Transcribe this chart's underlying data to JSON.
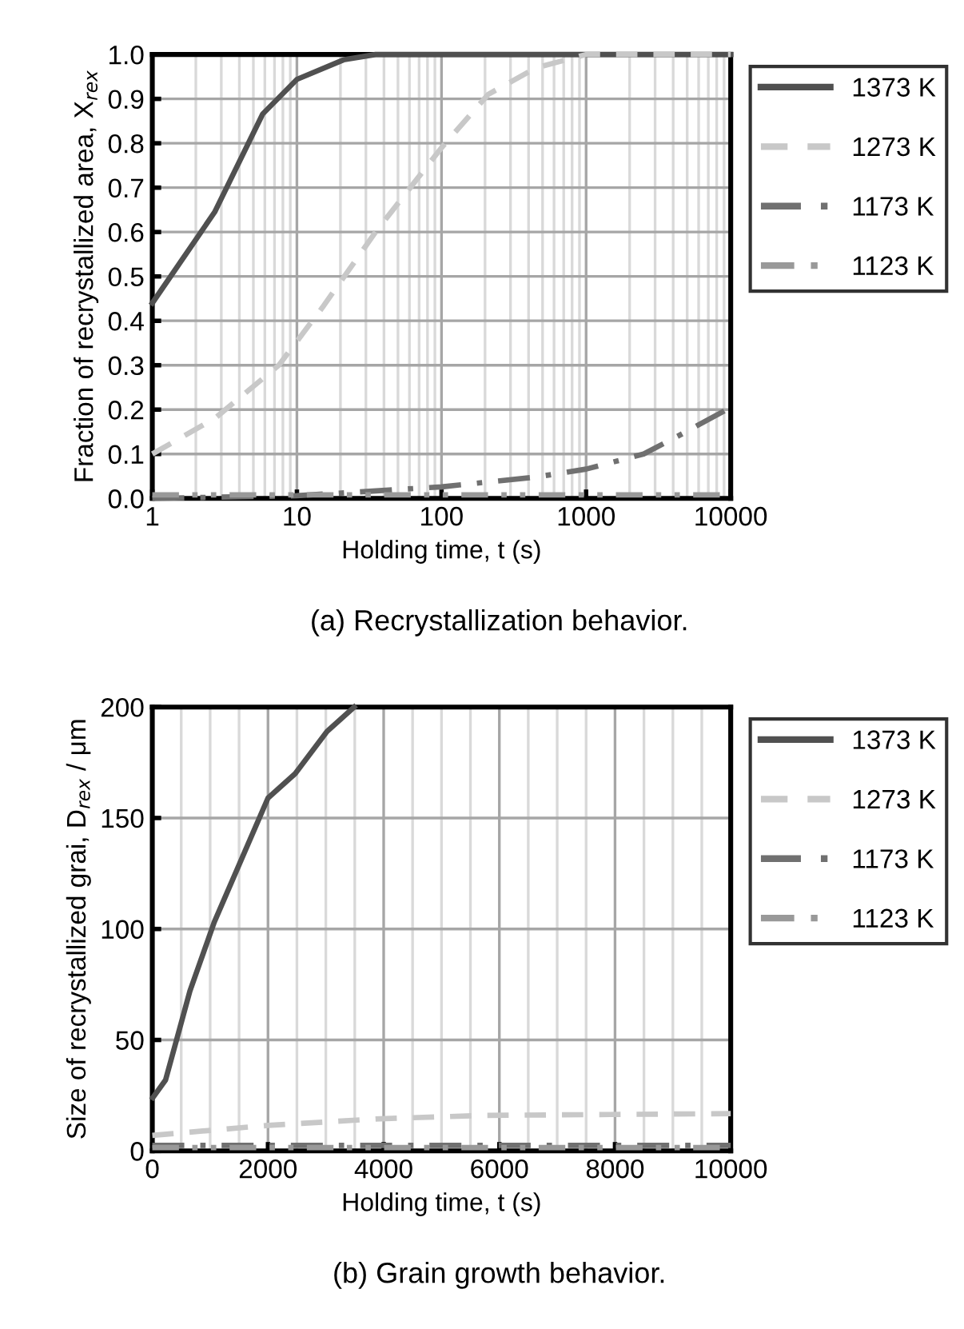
{
  "chart_data": [
    {
      "type": "line",
      "title": "(a) Recrystallization behavior.",
      "xlabel": "Holding time, t (s)",
      "ylabel": "Fraction of recrystallized area, X$_{rex}$",
      "log": "x",
      "xlim": [
        1,
        10000
      ],
      "xticks": [
        1,
        10,
        100,
        1000,
        10000
      ],
      "ylim": [
        0,
        1.0
      ],
      "yticks": [
        {
          "value": 0,
          "label": "0.0"
        },
        {
          "value": 0.1,
          "label": "0.1"
        },
        {
          "value": 0.2,
          "label": "0.2"
        },
        {
          "value": 0.3,
          "label": "0.3"
        },
        {
          "value": 0.4,
          "label": "0.4"
        },
        {
          "value": 0.5,
          "label": "0.5"
        },
        {
          "value": 0.6,
          "label": "0.6"
        },
        {
          "value": 0.7,
          "label": "0.7"
        },
        {
          "value": 0.8,
          "label": "0.8"
        },
        {
          "value": 0.9,
          "label": "0.9"
        },
        {
          "value": 1.0,
          "label": "1.0"
        }
      ],
      "grid": true,
      "legend": "right",
      "marker": "none",
      "series": [
        {
          "name": "1373 K",
          "color": "#505050",
          "line_style": "solid",
          "x": [
            1,
            2.7,
            5.8,
            10,
            21,
            35,
            10000
          ],
          "values": [
            0.44,
            0.645,
            0.866,
            0.944,
            0.988,
            1.0,
            1.0
          ]
        },
        {
          "name": "1273 K",
          "color": "#c8c8c8",
          "line_style": "dashed",
          "x": [
            1,
            2.7,
            7.5,
            15,
            35,
            100,
            210,
            450,
            1000,
            10000
          ],
          "values": [
            0.1,
            0.18,
            0.3,
            0.43,
            0.6,
            0.79,
            0.91,
            0.97,
            1.0,
            1.0
          ]
        },
        {
          "name": "1173 K",
          "color": "#707070",
          "line_style": "dashdot",
          "x": [
            1,
            10,
            100,
            450,
            1000,
            2500,
            4300,
            10000
          ],
          "values": [
            0.0,
            0.006,
            0.026,
            0.048,
            0.066,
            0.1,
            0.14,
            0.205
          ]
        },
        {
          "name": "1123 K",
          "color": "#999999",
          "line_style": "dashdotdot",
          "x": [
            1,
            100,
            1000,
            10000
          ],
          "values": [
            0.008,
            0.008,
            0.008,
            0.008
          ]
        }
      ]
    },
    {
      "type": "line",
      "title": "(b) Grain growth behavior.",
      "xlabel": "Holding time, t (s)",
      "ylabel": "Size of recrystallized grai, D$_{rex}$ / μm",
      "xlim": [
        0,
        10000
      ],
      "xticks": [
        0,
        2000,
        4000,
        6000,
        8000,
        10000
      ],
      "ylim": [
        0,
        200
      ],
      "yticks": [
        0,
        50,
        100,
        150,
        200
      ],
      "grid": true,
      "legend": "right",
      "marker": "none",
      "series": [
        {
          "name": "1373 K",
          "color": "#505050",
          "line_style": "solid",
          "x": [
            10,
            230,
            650,
            1070,
            2000,
            2470,
            3020,
            3490
          ],
          "values": [
            24,
            32,
            72,
            103,
            159,
            170,
            189,
            200
          ]
        },
        {
          "name": "1273 K",
          "color": "#c8c8c8",
          "line_style": "dashed",
          "x": [
            0,
            2000,
            3860,
            5720,
            10000
          ],
          "values": [
            7,
            11.5,
            14.4,
            16,
            16.8
          ]
        },
        {
          "name": "1173 K",
          "color": "#707070",
          "line_style": "dashdot",
          "x": [
            0,
            10000
          ],
          "values": [
            2.5,
            2.5
          ]
        },
        {
          "name": "1123 K",
          "color": "#999999",
          "line_style": "dashdotdot",
          "x": [
            0,
            10000
          ],
          "values": [
            1.5,
            1.5
          ]
        }
      ]
    }
  ]
}
